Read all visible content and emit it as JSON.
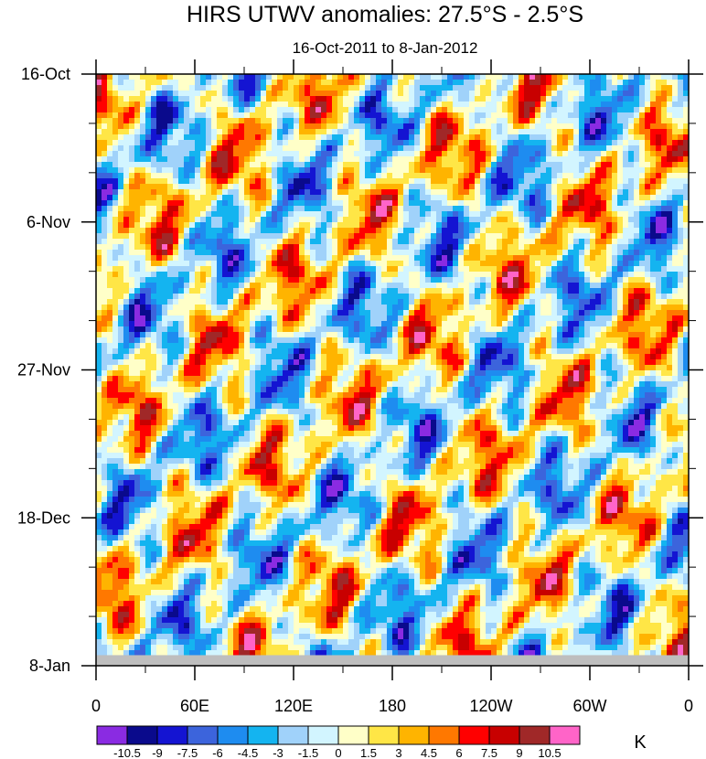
{
  "chart_data": {
    "type": "heatmap",
    "title": "HIRS UTWV anomalies: 27.5°S - 2.5°S",
    "subtitle": "16-Oct-2011 to 8-Jan-2012",
    "x_ticks": [
      "0",
      "60E",
      "120E",
      "180",
      "120W",
      "60W",
      "0"
    ],
    "x_tick_lons": [
      0,
      60,
      120,
      180,
      240,
      300,
      360
    ],
    "x_range": [
      0,
      360
    ],
    "y_ticks": [
      "16-Oct",
      "6-Nov",
      "27-Nov",
      "18-Dec",
      "8-Jan"
    ],
    "y_tick_days": [
      0,
      21,
      42,
      63,
      84
    ],
    "y_range_days": [
      0,
      84
    ],
    "missing_from_day": 82.5,
    "colorbar": {
      "unit": "K",
      "levels": [
        "-10.5",
        "-9",
        "-7.5",
        "-6",
        "-4.5",
        "-3",
        "-1.5",
        "0",
        "1.5",
        "3",
        "4.5",
        "6",
        "7.5",
        "9",
        "10.5"
      ],
      "level_values": [
        -10.5,
        -9,
        -7.5,
        -6,
        -4.5,
        -3,
        -1.5,
        0,
        1.5,
        3,
        4.5,
        6,
        7.5,
        9,
        10.5
      ],
      "colors": [
        "#8a2be2",
        "#0a0a8c",
        "#1414d2",
        "#3c64dc",
        "#1e8cf0",
        "#14b4f0",
        "#a0d2fa",
        "#d2f5ff",
        "#ffffc8",
        "#ffe646",
        "#ffb400",
        "#ff7800",
        "#ff0000",
        "#c80000",
        "#a02828",
        "#ff64c8"
      ]
    }
  }
}
